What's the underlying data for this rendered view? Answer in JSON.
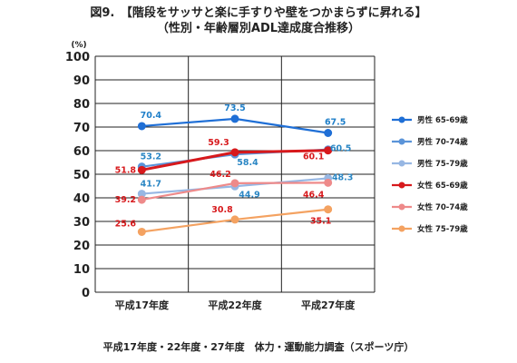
{
  "title_line1": "図9.　【階段をサッサと楽に手すりや壁をつかまらずに昇れる】",
  "title_line2": "（性別・年齢層別ADL達成度合推移）",
  "footer": "平成17年度・22年度・27年度　体力・運動能力調査（スポーツ庁）",
  "chart_data": {
    "type": "line",
    "title": "図9.　【階段をサッサと楽に手すりや壁をつかまらずに昇れる】",
    "subtitle": "（性別・年齢層別ADL達成度合推移）",
    "y_unit": "(%)",
    "categories": [
      "平成17年度",
      "平成22年度",
      "平成27年度"
    ],
    "ylim": [
      0,
      100
    ],
    "yticks": [
      0,
      10,
      20,
      30,
      40,
      50,
      60,
      70,
      80,
      90,
      100
    ],
    "grid": true,
    "legend_position": "right",
    "series": [
      {
        "name": "男性 65-69歳",
        "values": [
          70.4,
          73.5,
          67.5
        ],
        "color": "#1f6fd6",
        "label_color": "#1f7fc9",
        "label_offsets": [
          [
            10,
            -9
          ],
          [
            0,
            -9
          ],
          [
            8,
            -9
          ]
        ]
      },
      {
        "name": "男性 70-74歳",
        "values": [
          53.2,
          58.4,
          60.5
        ],
        "color": "#5b94d9",
        "label_color": "#2a86c4",
        "label_offsets": [
          [
            10,
            -8
          ],
          [
            14,
            12
          ],
          [
            14,
            2
          ]
        ]
      },
      {
        "name": "男性 75-79歳",
        "values": [
          41.7,
          44.9,
          48.3
        ],
        "color": "#97b7e3",
        "label_color": "#2a86c4",
        "label_offsets": [
          [
            10,
            -8
          ],
          [
            16,
            12
          ],
          [
            16,
            2
          ]
        ]
      },
      {
        "name": "女性 65-69歳",
        "values": [
          51.8,
          59.3,
          60.1
        ],
        "color": "#d7191c",
        "label_color": "#d7191c",
        "label_offsets": [
          [
            -18,
            3
          ],
          [
            -18,
            -8
          ],
          [
            -16,
            10
          ]
        ]
      },
      {
        "name": "女性 70-74歳",
        "values": [
          39.2,
          46.2,
          46.4
        ],
        "color": "#ee8a8a",
        "label_color": "#d7191c",
        "label_offsets": [
          [
            -18,
            3
          ],
          [
            -16,
            -7
          ],
          [
            -16,
            16
          ]
        ]
      },
      {
        "name": "女性 75-79歳",
        "values": [
          25.6,
          30.8,
          35.1
        ],
        "color": "#f4a261",
        "label_color": "#d7191c",
        "label_offsets": [
          [
            -18,
            -6
          ],
          [
            -14,
            -8
          ],
          [
            -8,
            16
          ]
        ]
      }
    ]
  }
}
